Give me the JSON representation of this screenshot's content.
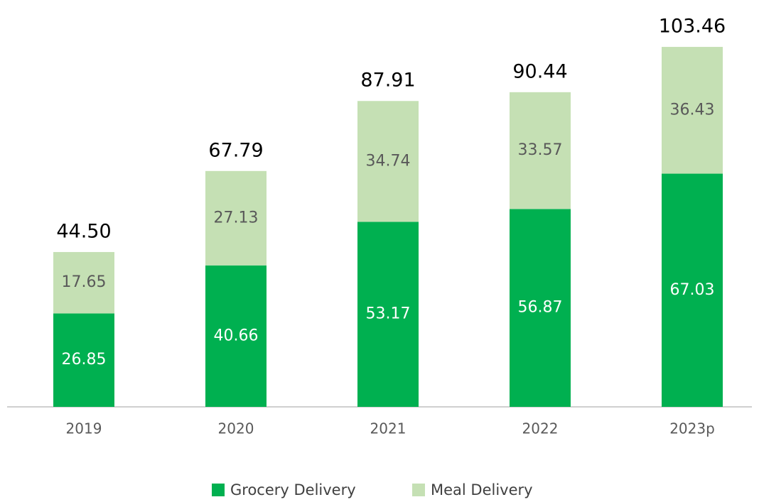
{
  "chart_data": {
    "type": "stacked_bar",
    "categories": [
      "2019",
      "2020",
      "2021",
      "2022",
      "2023p"
    ],
    "series": [
      {
        "name": "Grocery Delivery",
        "color": "#00b050",
        "values": [
          26.85,
          40.66,
          53.17,
          56.87,
          67.03
        ]
      },
      {
        "name": "Meal Delivery",
        "color": "#c5e0b4",
        "values": [
          17.65,
          27.13,
          34.74,
          33.57,
          36.43
        ]
      }
    ],
    "totals": [
      44.5,
      67.79,
      87.91,
      90.44,
      103.46
    ],
    "total_labels": [
      "44.50",
      "67.79",
      "87.91",
      "90.44",
      "103.46"
    ],
    "legend": "bottom"
  }
}
